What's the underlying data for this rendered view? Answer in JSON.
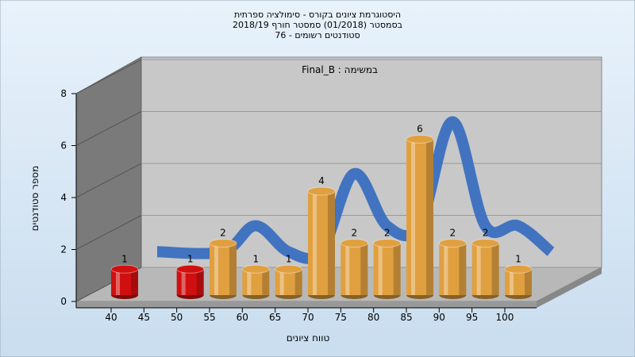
{
  "chart_data": {
    "type": "bar",
    "title": [
      "היסטוגרמת ציונים בקורס - סימולציה ספרתית",
      "בסמסטר  (01/2018)  סמסטר חורף 2018/19",
      "סטודנטים רשומים - 76"
    ],
    "annotation": "במשימה : Final_B",
    "x_label": "טווח ציונים",
    "y_label": "מספר סטודנטים",
    "categories": [
      "40",
      "45",
      "50",
      "55",
      "60",
      "65",
      "70",
      "75",
      "80",
      "85",
      "90",
      "95",
      "100"
    ],
    "values": [
      1,
      null,
      1,
      2,
      1,
      1,
      4,
      2,
      2,
      6,
      2,
      2,
      1
    ],
    "colors": [
      "#d01010",
      null,
      "#d01010",
      "#e0a040",
      "#e0a040",
      "#e0a040",
      "#e0a040",
      "#e0a040",
      "#e0a040",
      "#e0a040",
      "#e0a040",
      "#e0a040",
      "#e0a040"
    ],
    "curve_color": "#3a6fc0",
    "ylim": [
      0,
      8
    ],
    "yticks": [
      0,
      2,
      4,
      6,
      8
    ],
    "grid": true
  }
}
